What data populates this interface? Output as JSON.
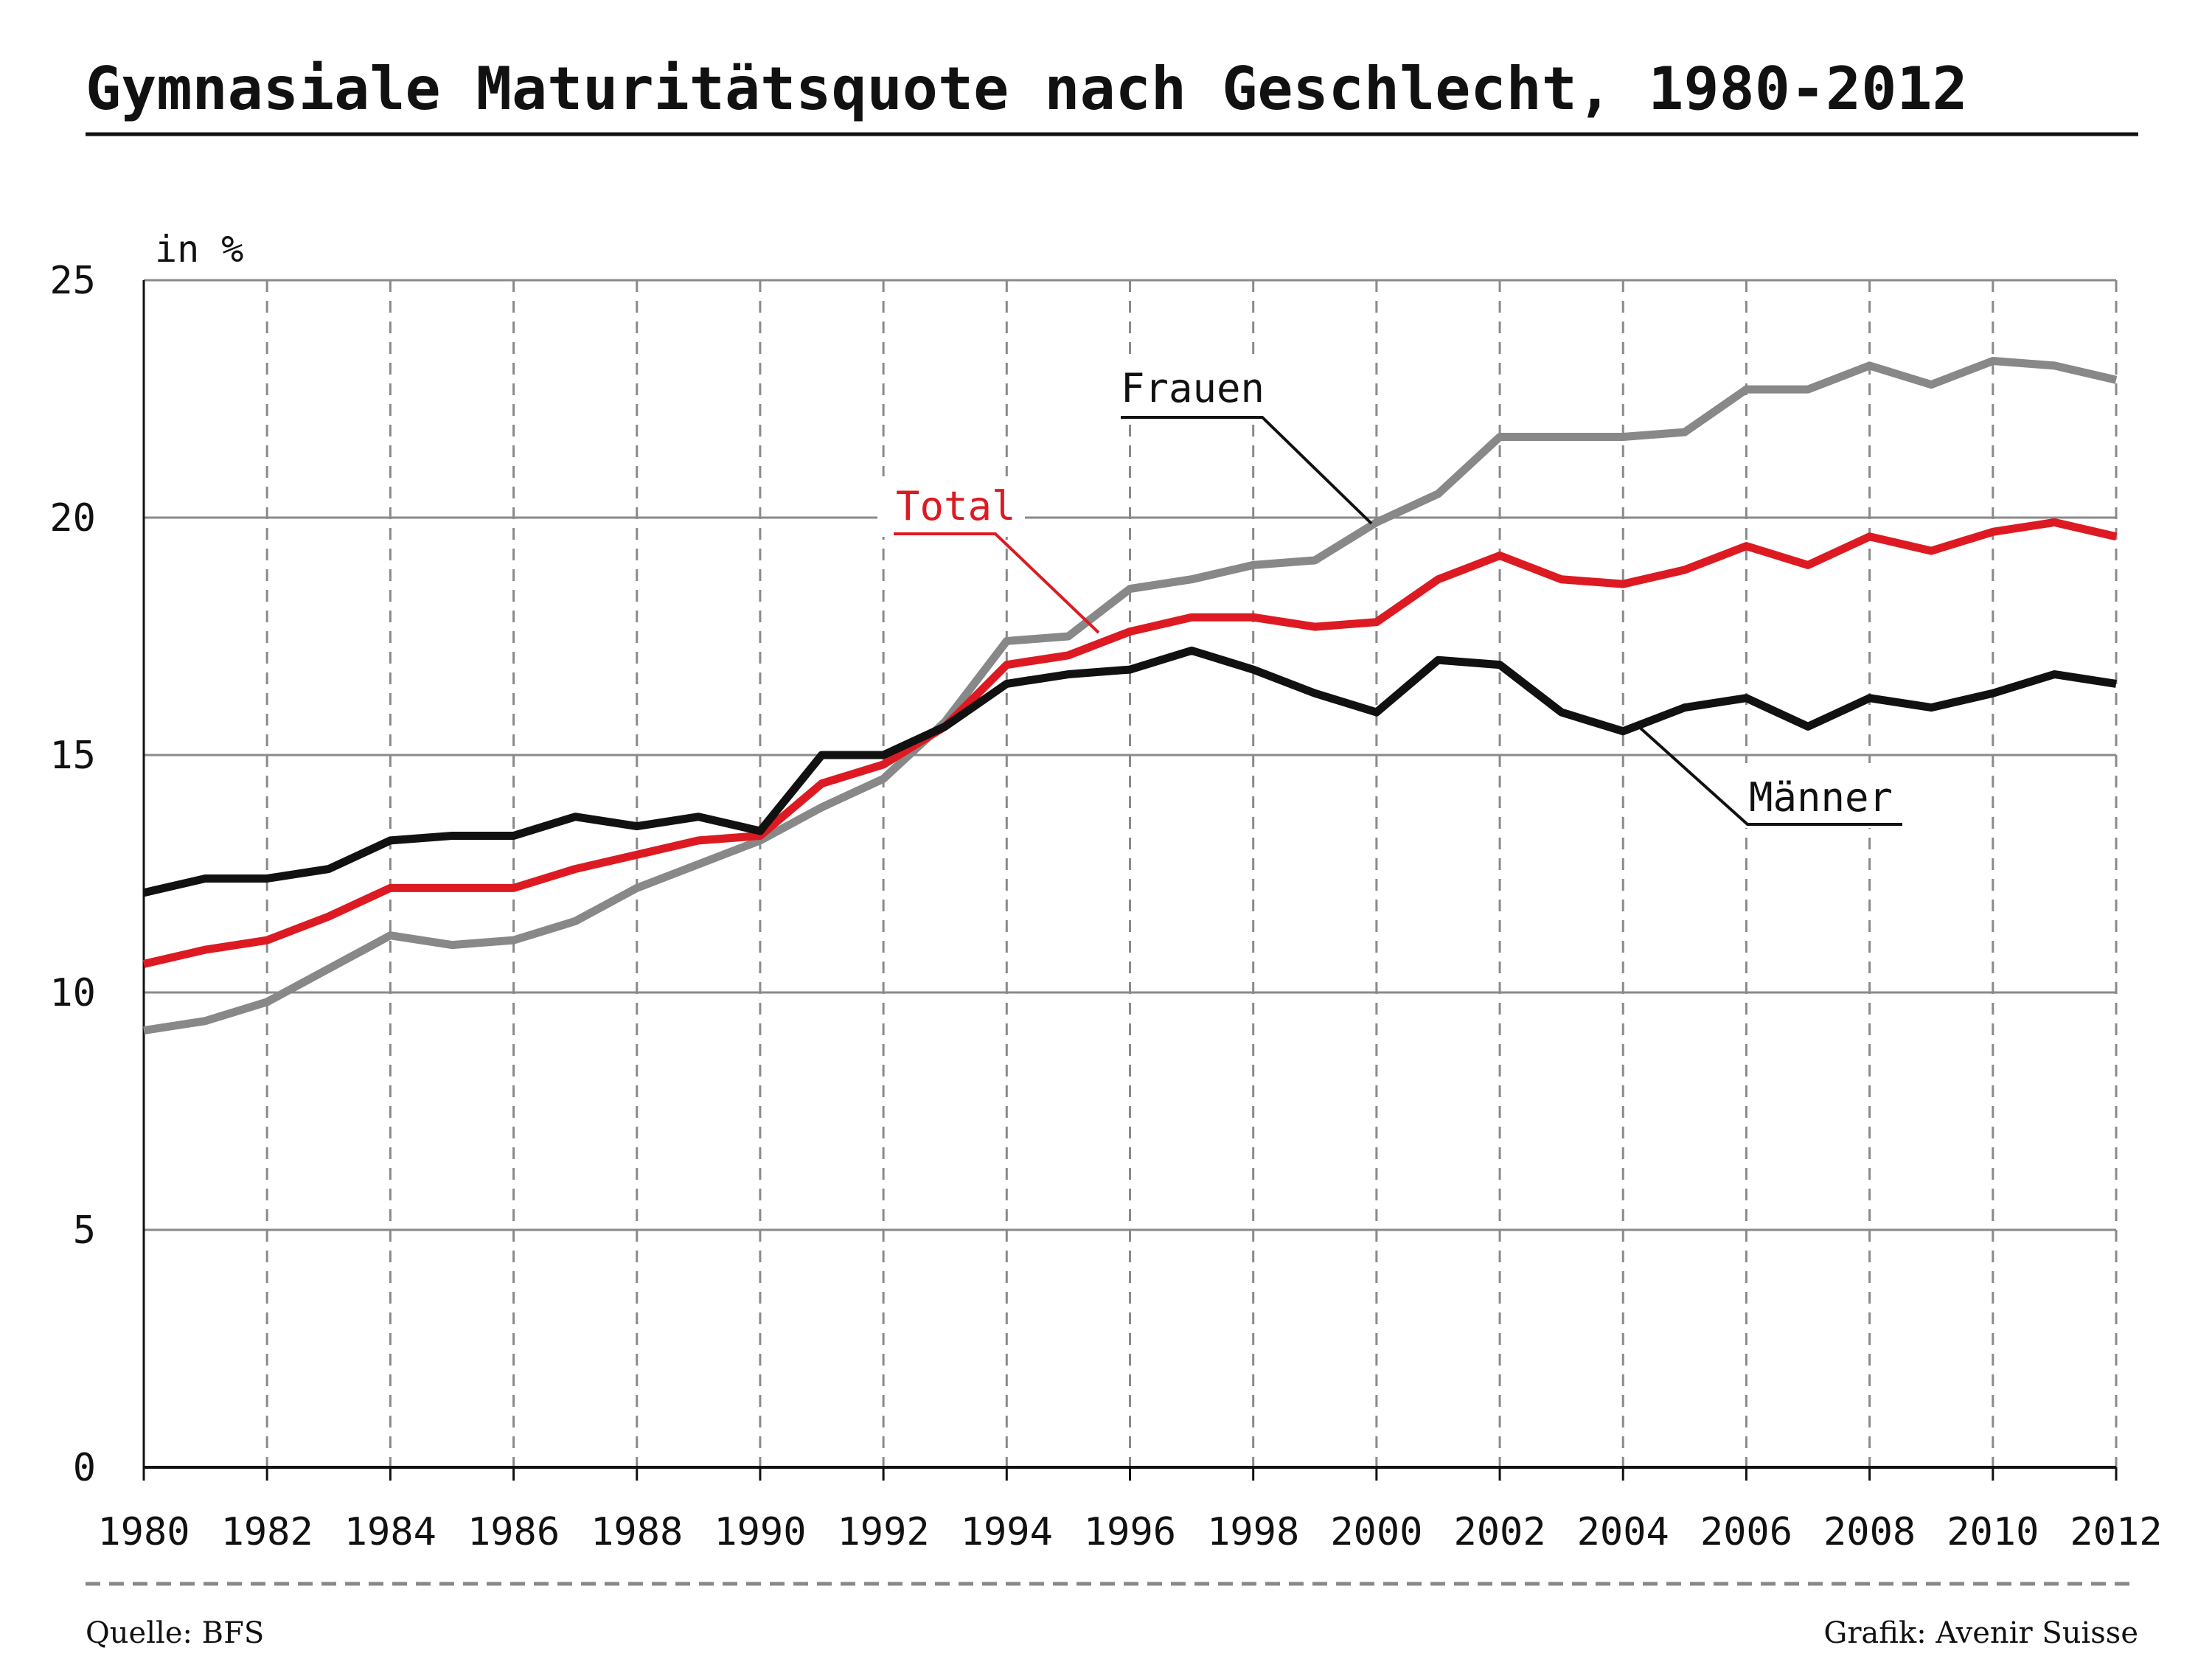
{
  "chart_data": {
    "type": "line",
    "title": "Gymnasiale Maturitätsquote nach Geschlecht, 1980-2012",
    "ylabel": "in %",
    "xlabel": "",
    "ylim": [
      0,
      25
    ],
    "xlim": [
      1980,
      2012
    ],
    "yticks": [
      "0",
      "5",
      "10",
      "15",
      "20",
      "25"
    ],
    "xticks": [
      "1980",
      "1982",
      "1984",
      "1986",
      "1988",
      "1990",
      "1992",
      "1994",
      "1996",
      "1998",
      "2000",
      "2002",
      "2004",
      "2006",
      "2008",
      "2010",
      "2012"
    ],
    "grid": "horizontal solid, vertical dashed",
    "x": [
      1980,
      1981,
      1982,
      1983,
      1984,
      1985,
      1986,
      1987,
      1988,
      1989,
      1990,
      1991,
      1992,
      1993,
      1994,
      1995,
      1996,
      1997,
      1998,
      1999,
      2000,
      2001,
      2002,
      2003,
      2004,
      2005,
      2006,
      2007,
      2008,
      2009,
      2010,
      2011,
      2012
    ],
    "series": [
      {
        "name": "Frauen",
        "color": "#888888",
        "values": [
          9.2,
          9.4,
          9.8,
          10.5,
          11.2,
          11.0,
          11.1,
          11.5,
          12.2,
          12.7,
          13.2,
          13.9,
          14.5,
          15.7,
          17.4,
          17.5,
          18.5,
          18.7,
          19.0,
          19.1,
          19.9,
          20.5,
          21.7,
          21.7,
          21.7,
          21.8,
          22.7,
          22.7,
          23.2,
          22.8,
          23.3,
          23.2,
          22.9
        ]
      },
      {
        "name": "Total",
        "color": "#dd1a22",
        "values": [
          10.6,
          10.9,
          11.1,
          11.6,
          12.2,
          12.2,
          12.2,
          12.6,
          12.9,
          13.2,
          13.3,
          14.4,
          14.8,
          15.6,
          16.9,
          17.1,
          17.6,
          17.9,
          17.9,
          17.7,
          17.8,
          18.7,
          19.2,
          18.7,
          18.6,
          18.9,
          19.4,
          19.0,
          19.6,
          19.3,
          19.7,
          19.9,
          19.6
        ]
      },
      {
        "name": "Männer",
        "color": "#111111",
        "values": [
          12.1,
          12.4,
          12.4,
          12.6,
          13.2,
          13.3,
          13.3,
          13.7,
          13.5,
          13.7,
          13.4,
          15.0,
          15.0,
          15.6,
          16.5,
          16.7,
          16.8,
          17.2,
          16.8,
          16.3,
          15.9,
          17.0,
          16.9,
          15.9,
          15.5,
          16.0,
          16.2,
          15.6,
          16.2,
          16.0,
          16.3,
          16.7,
          16.5
        ]
      }
    ]
  },
  "footer": {
    "source": "Quelle: BFS",
    "credit": "Grafik: Avenir Suisse"
  }
}
